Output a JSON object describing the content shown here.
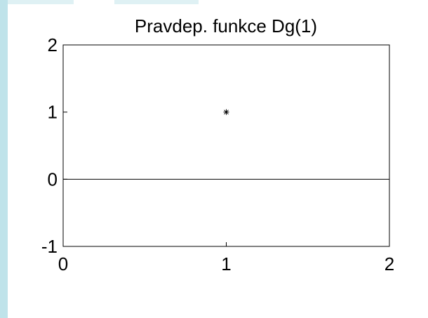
{
  "colors": {
    "sidebar": "#bfe3ea",
    "axis": "#000000",
    "background": "#ffffff"
  },
  "chart_data": {
    "type": "scatter",
    "title": "Pravdep. funkce Dg(1)",
    "xlabel": "",
    "ylabel": "",
    "xlim": [
      0,
      2
    ],
    "ylim": [
      -1,
      2
    ],
    "x_ticks": [
      "0",
      "1",
      "2"
    ],
    "y_ticks": [
      "-1",
      "0",
      "1",
      "2"
    ],
    "reference_line_y": 0,
    "marker": "asterisk",
    "points": [
      {
        "x": 1,
        "y": 1
      }
    ],
    "grid": false,
    "legend": "none"
  }
}
